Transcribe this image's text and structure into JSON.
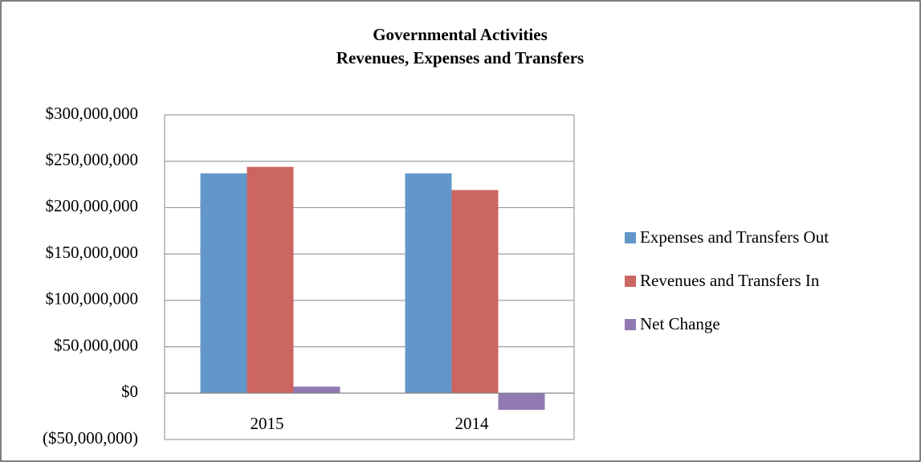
{
  "chart_data": {
    "type": "bar",
    "title": "Governmental Activities",
    "subtitle": "Revenues, Expenses and Transfers",
    "categories": [
      "2015",
      "2014"
    ],
    "series": [
      {
        "name": "Expenses and Transfers Out",
        "color": "#6497c9",
        "values": [
          237000000,
          237000000
        ]
      },
      {
        "name": "Revenues and Transfers In",
        "color": "#cc6660",
        "values": [
          244000000,
          219000000
        ]
      },
      {
        "name": "Net Change",
        "color": "#9179b1",
        "values": [
          7000000,
          -18000000
        ]
      }
    ],
    "ylim": [
      -50000000,
      300000000
    ],
    "yticks": [
      {
        "value": -50000000,
        "label": "($50,000,000)"
      },
      {
        "value": 0,
        "label": "$0"
      },
      {
        "value": 50000000,
        "label": "$50,000,000"
      },
      {
        "value": 100000000,
        "label": "$100,000,000"
      },
      {
        "value": 150000000,
        "label": "$150,000,000"
      },
      {
        "value": 200000000,
        "label": "$200,000,000"
      },
      {
        "value": 250000000,
        "label": "$250,000,000"
      },
      {
        "value": 300000000,
        "label": "$300,000,000"
      }
    ],
    "grid": true,
    "legend": "right"
  }
}
